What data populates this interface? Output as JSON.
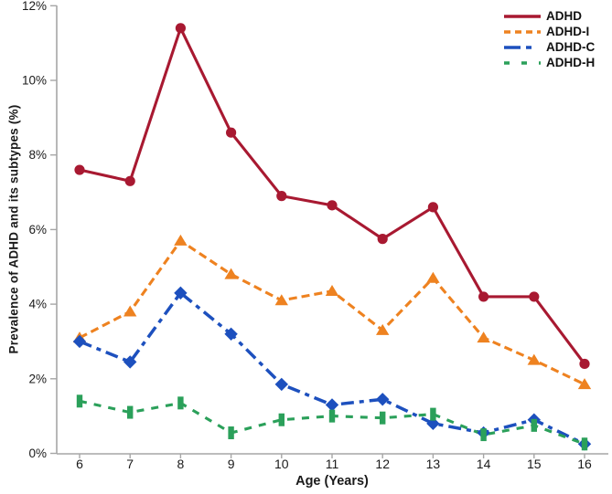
{
  "chart_data": {
    "type": "line",
    "title": "",
    "xlabel": "Age (Years)",
    "ylabel": "Prevalence of ADHD and its subtypes (%)",
    "x": [
      6,
      7,
      8,
      9,
      10,
      11,
      12,
      13,
      14,
      15,
      16
    ],
    "x_tick_labels": [
      "6",
      "7",
      "8",
      "9",
      "10",
      "11",
      "12",
      "13",
      "14",
      "15",
      "16"
    ],
    "y_ticks": [
      0,
      2,
      4,
      6,
      8,
      10,
      12
    ],
    "y_tick_suffix": "%",
    "ylim": [
      0,
      12
    ],
    "grid": false,
    "legend_position": "top-right",
    "axis_color": "#a6a6a6",
    "text_color": "#1a1a1a",
    "series": [
      {
        "name": "ADHD",
        "color": "#A81931",
        "line_style": "solid",
        "marker": "circle",
        "values": [
          7.6,
          7.3,
          11.4,
          8.6,
          6.9,
          6.65,
          5.75,
          6.6,
          4.2,
          4.2,
          2.4
        ]
      },
      {
        "name": "ADHD-I",
        "color": "#EE8220",
        "line_style": "dashed",
        "marker": "triangle",
        "values": [
          3.1,
          3.8,
          5.7,
          4.8,
          4.1,
          4.35,
          3.3,
          4.7,
          3.1,
          2.5,
          1.85
        ]
      },
      {
        "name": "ADHD-C",
        "color": "#1D50BE",
        "line_style": "dash-dot",
        "marker": "diamond",
        "values": [
          3.0,
          2.45,
          4.3,
          3.2,
          1.85,
          1.3,
          1.45,
          0.8,
          0.55,
          0.9,
          0.25
        ]
      },
      {
        "name": "ADHD-H",
        "color": "#2BA05A",
        "line_style": "short-dash",
        "marker": "vbar",
        "values": [
          1.4,
          1.1,
          1.35,
          0.55,
          0.9,
          1.0,
          0.95,
          1.05,
          0.5,
          0.75,
          0.25
        ]
      }
    ]
  }
}
